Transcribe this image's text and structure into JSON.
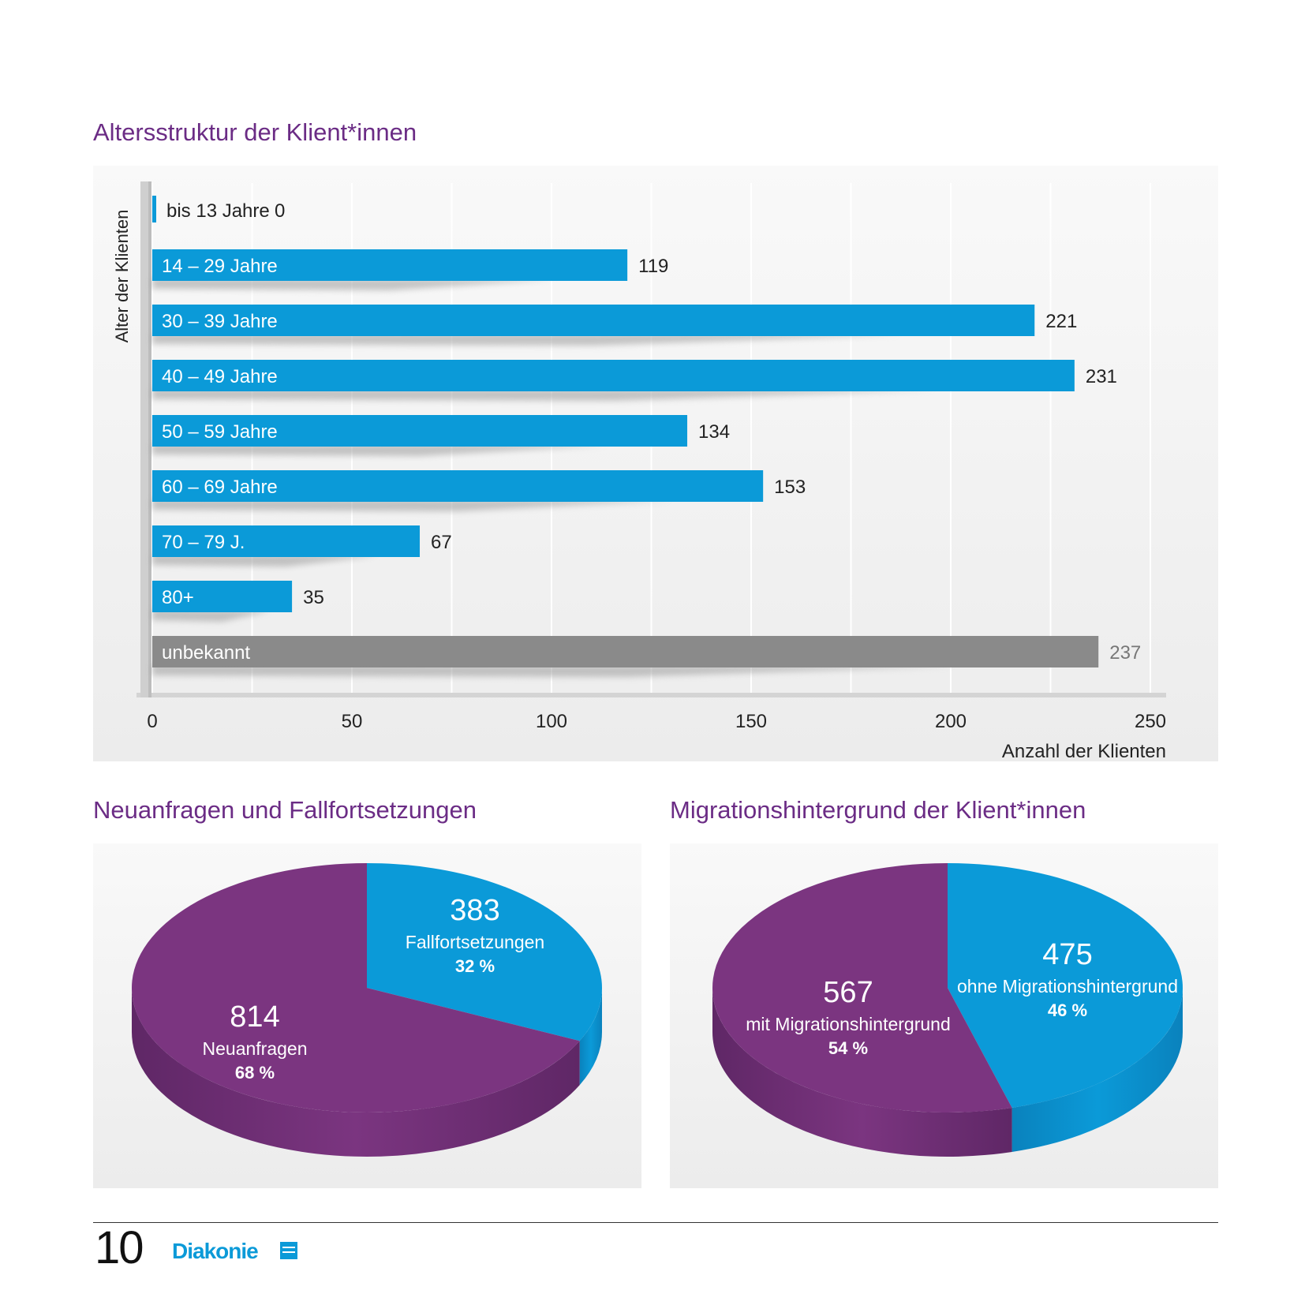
{
  "bar_title": "Altersstruktur der Klient*innen",
  "pie1_title": "Neuanfragen und Fallfortsetzungen",
  "pie2_title": "Migrationshintergrund der Klient*innen",
  "footer": {
    "page_number": "10",
    "brand": "Diakonie"
  },
  "colors": {
    "blue": "#0b9ad8",
    "purple": "#7b3580",
    "gray": "#8a8a8a",
    "title": "#6b2c85"
  },
  "chart_data": [
    {
      "type": "bar",
      "orientation": "horizontal",
      "title": "Altersstruktur der Klient*innen",
      "ylabel": "Alter der Klienten",
      "xlabel": "Anzahl der Klienten",
      "xlim": [
        0,
        250
      ],
      "xticks": [
        "0",
        "50",
        "100",
        "150",
        "200",
        "250"
      ],
      "grid": true,
      "categories": [
        "bis 13 Jahre",
        "14 – 29 Jahre",
        "30 – 39 Jahre",
        "40 – 49 Jahre",
        "50 – 59 Jahre",
        "60 – 69 Jahre",
        "70 – 79 J.",
        "80+",
        "unbekannt"
      ],
      "values": [
        0,
        119,
        221,
        231,
        134,
        153,
        67,
        35,
        237
      ],
      "bar_colors": [
        "blue",
        "blue",
        "blue",
        "blue",
        "blue",
        "blue",
        "blue",
        "blue",
        "gray"
      ]
    },
    {
      "type": "pie",
      "title": "Neuanfragen und Fallfortsetzungen",
      "slices": [
        {
          "label": "Fallfortsetzungen",
          "value": 383,
          "value_label": "383",
          "percent": "32 %",
          "color": "blue"
        },
        {
          "label": "Neuanfragen",
          "value": 814,
          "value_label": "814",
          "percent": "68 %",
          "color": "purple"
        }
      ]
    },
    {
      "type": "pie",
      "title": "Migrationshintergrund der Klient*innen",
      "slices": [
        {
          "label": "ohne Migrationshintergrund",
          "value": 475,
          "value_label": "475",
          "percent": "46 %",
          "color": "blue"
        },
        {
          "label": "mit Migrationshintergrund",
          "value": 567,
          "value_label": "567",
          "percent": "54 %",
          "color": "purple"
        }
      ]
    }
  ]
}
